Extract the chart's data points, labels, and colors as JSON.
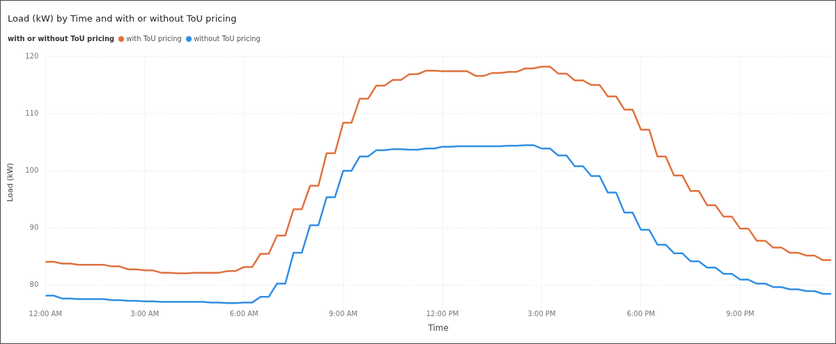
{
  "chart_data": {
    "type": "line",
    "title": "Load (kW) by Time and with or without ToU pricing",
    "legend_title": "with or without ToU pricing",
    "xlabel": "Time",
    "ylabel": "Load (kW)",
    "x": [
      0,
      0.25,
      0.5,
      0.75,
      1,
      1.25,
      1.5,
      1.75,
      2,
      2.25,
      2.5,
      2.75,
      3,
      3.25,
      3.5,
      3.75,
      4,
      4.25,
      4.5,
      4.75,
      5,
      5.25,
      5.5,
      5.75,
      6,
      6.25,
      6.5,
      6.75,
      7,
      7.25,
      7.5,
      7.75,
      8,
      8.25,
      8.5,
      8.75,
      9,
      9.25,
      9.5,
      9.75,
      10,
      10.25,
      10.5,
      10.75,
      11,
      11.25,
      11.5,
      11.75,
      12,
      12.25,
      12.5,
      12.75,
      13,
      13.25,
      13.5,
      13.75,
      14,
      14.25,
      14.5,
      14.75,
      15,
      15.25,
      15.5,
      15.75,
      16,
      16.25,
      16.5,
      16.75,
      17,
      17.25,
      17.5,
      17.75,
      18,
      18.25,
      18.5,
      18.75,
      19,
      19.25,
      19.5,
      19.75,
      20,
      20.25,
      20.5,
      20.75,
      21,
      21.25,
      21.5,
      21.75,
      22,
      22.25,
      22.5,
      22.75,
      23,
      23.25,
      23.5,
      23.75
    ],
    "series": [
      {
        "name": "with ToU pricing",
        "color": "#e0703c",
        "values": [
          84.1,
          84.1,
          83.8,
          83.8,
          83.6,
          83.6,
          83.6,
          83.6,
          83.3,
          83.3,
          82.8,
          82.8,
          82.6,
          82.6,
          82.2,
          82.2,
          82.1,
          82.1,
          82.2,
          82.2,
          82.2,
          82.2,
          82.5,
          82.5,
          83.2,
          83.2,
          85.5,
          85.5,
          88.7,
          88.7,
          93.3,
          93.3,
          97.4,
          97.4,
          103.1,
          103.1,
          108.4,
          108.4,
          112.6,
          112.6,
          114.9,
          114.9,
          115.9,
          115.9,
          116.9,
          116.9,
          117.5,
          117.5,
          117.4,
          117.4,
          117.4,
          117.4,
          116.6,
          116.6,
          117.1,
          117.1,
          117.3,
          117.3,
          117.9,
          117.9,
          118.2,
          118.2,
          117,
          117,
          115.8,
          115.8,
          115,
          115,
          113,
          113,
          110.7,
          110.7,
          107.2,
          107.2,
          102.5,
          102.5,
          99.2,
          99.2,
          96.5,
          96.5,
          94,
          94,
          92,
          92,
          89.9,
          89.9,
          87.8,
          87.8,
          86.6,
          86.6,
          85.7,
          85.7,
          85.2,
          85.2,
          84.4,
          84.4
        ]
      },
      {
        "name": "without ToU pricing",
        "color": "#2f8ee5",
        "values": [
          78.2,
          78.2,
          77.7,
          77.7,
          77.6,
          77.6,
          77.6,
          77.6,
          77.4,
          77.4,
          77.3,
          77.3,
          77.2,
          77.2,
          77.1,
          77.1,
          77.1,
          77.1,
          77.1,
          77.1,
          77,
          77,
          76.9,
          76.9,
          77,
          77,
          78,
          78,
          80.3,
          80.3,
          85.7,
          85.7,
          90.5,
          90.5,
          95.4,
          95.4,
          100,
          100,
          102.5,
          102.5,
          103.6,
          103.6,
          103.8,
          103.8,
          103.7,
          103.7,
          103.9,
          103.9,
          104.2,
          104.2,
          104.3,
          104.3,
          104.3,
          104.3,
          104.3,
          104.3,
          104.4,
          104.4,
          104.5,
          104.5,
          103.9,
          103.9,
          102.7,
          102.7,
          100.8,
          100.8,
          99.1,
          99.1,
          96.2,
          96.2,
          92.7,
          92.7,
          89.7,
          89.7,
          87.1,
          87.1,
          85.6,
          85.6,
          84.2,
          84.2,
          83.1,
          83.1,
          82,
          82,
          81,
          81,
          80.3,
          80.3,
          79.7,
          79.7,
          79.3,
          79.3,
          79,
          79,
          78.5,
          78.5
        ]
      }
    ],
    "xlim": [
      0,
      23.75
    ],
    "xticks": [
      {
        "value": 0,
        "label": "12:00 AM"
      },
      {
        "value": 3,
        "label": "3:00 AM"
      },
      {
        "value": 6,
        "label": "6:00 AM"
      },
      {
        "value": 9,
        "label": "9:00 AM"
      },
      {
        "value": 12,
        "label": "12:00 PM"
      },
      {
        "value": 15,
        "label": "3:00 PM"
      },
      {
        "value": 18,
        "label": "6:00 PM"
      },
      {
        "value": 21,
        "label": "9:00 PM"
      }
    ],
    "ylim": [
      76,
      120
    ],
    "yticks": [
      80,
      90,
      100,
      110,
      120
    ],
    "grid": true,
    "legend": "top left",
    "marker": "none",
    "line_style": "solid"
  }
}
